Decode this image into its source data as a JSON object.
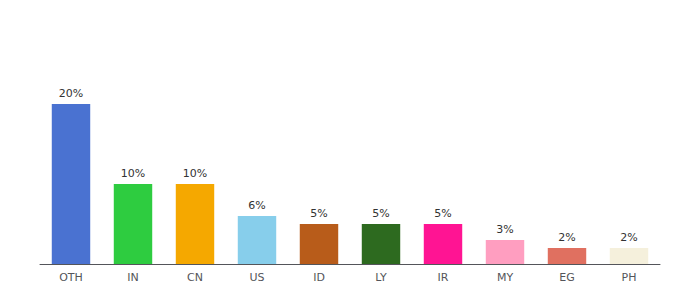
{
  "chart_data": {
    "type": "bar",
    "categories": [
      "OTH",
      "IN",
      "CN",
      "US",
      "ID",
      "LY",
      "IR",
      "MY",
      "EG",
      "PH"
    ],
    "values": [
      20,
      10,
      10,
      6,
      5,
      5,
      5,
      3,
      2,
      2
    ],
    "value_labels": [
      "20%",
      "10%",
      "10%",
      "6%",
      "5%",
      "5%",
      "5%",
      "3%",
      "2%",
      "2%"
    ],
    "colors": [
      "#4a72d1",
      "#2ecc40",
      "#f5a800",
      "#87ceeb",
      "#b85c1a",
      "#2d6a1f",
      "#ff1493",
      "#ff9ec0",
      "#e07060",
      "#f5f0dc"
    ],
    "ylim": [
      0,
      28
    ],
    "tick_labels": "x",
    "grid": false
  }
}
